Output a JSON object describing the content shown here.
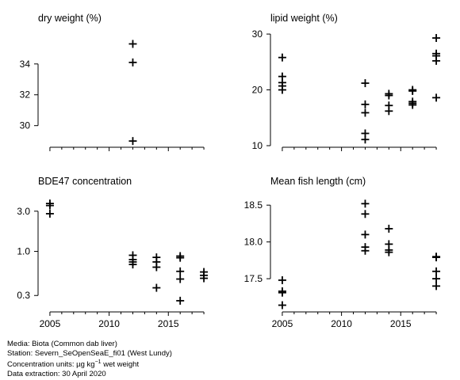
{
  "chart_data": [
    {
      "type": "scatter",
      "title": "dry weight (%)",
      "xlim": [
        2004,
        2019
      ],
      "ylim": [
        28.7,
        36.3
      ],
      "log_y": false,
      "yticks": [
        30,
        32,
        34
      ],
      "ytick_labels": [
        "30",
        "32",
        "34"
      ],
      "xticks": [
        2005,
        2010,
        2015
      ],
      "show_x_labels": false,
      "grid": false,
      "points": [
        {
          "x": 2012,
          "y": 35.3
        },
        {
          "x": 2012,
          "y": 34.1
        },
        {
          "x": 2012,
          "y": 29.0
        }
      ]
    },
    {
      "type": "scatter",
      "title": "lipid weight (%)",
      "xlim": [
        2004,
        2019
      ],
      "ylim": [
        10,
        31
      ],
      "log_y": false,
      "yticks": [
        10,
        20,
        30
      ],
      "ytick_labels": [
        "10",
        "20",
        "30"
      ],
      "xticks": [
        2005,
        2010,
        2015
      ],
      "show_x_labels": false,
      "grid": false,
      "points": [
        {
          "x": 2005,
          "y": 25.8
        },
        {
          "x": 2005,
          "y": 22.4
        },
        {
          "x": 2005,
          "y": 21.3
        },
        {
          "x": 2005,
          "y": 20.7
        },
        {
          "x": 2005,
          "y": 20.0
        },
        {
          "x": 2012,
          "y": 21.2
        },
        {
          "x": 2012,
          "y": 17.4
        },
        {
          "x": 2012,
          "y": 15.9
        },
        {
          "x": 2012,
          "y": 12.2
        },
        {
          "x": 2012,
          "y": 11.1
        },
        {
          "x": 2014,
          "y": 19.3
        },
        {
          "x": 2014,
          "y": 19.0
        },
        {
          "x": 2014,
          "y": 17.2
        },
        {
          "x": 2014,
          "y": 16.2
        },
        {
          "x": 2016,
          "y": 20.0
        },
        {
          "x": 2016,
          "y": 19.8
        },
        {
          "x": 2016,
          "y": 17.9
        },
        {
          "x": 2016,
          "y": 17.6
        },
        {
          "x": 2016,
          "y": 17.3
        },
        {
          "x": 2018,
          "y": 29.3
        },
        {
          "x": 2018,
          "y": 26.5
        },
        {
          "x": 2018,
          "y": 26.1
        },
        {
          "x": 2018,
          "y": 25.2
        },
        {
          "x": 2018,
          "y": 18.6
        }
      ]
    },
    {
      "type": "scatter",
      "title": "BDE47 concentration",
      "xlim": [
        2004,
        2019
      ],
      "ylim": [
        0.2,
        4.5
      ],
      "log_y": true,
      "yticks": [
        0.3,
        1.0,
        3.0
      ],
      "ytick_labels": [
        "0.3",
        "1.0",
        "3.0"
      ],
      "xticks": [
        2005,
        2010,
        2015
      ],
      "show_x_labels": true,
      "xtick_labels": [
        "2005",
        "2010",
        "2015"
      ],
      "grid": false,
      "points": [
        {
          "x": 2005,
          "y": 3.7
        },
        {
          "x": 2005,
          "y": 3.5
        },
        {
          "x": 2005,
          "y": 2.8
        },
        {
          "x": 2012,
          "y": 0.9
        },
        {
          "x": 2012,
          "y": 0.8
        },
        {
          "x": 2012,
          "y": 0.75
        },
        {
          "x": 2012,
          "y": 0.7
        },
        {
          "x": 2014,
          "y": 0.85
        },
        {
          "x": 2014,
          "y": 0.75
        },
        {
          "x": 2014,
          "y": 0.65
        },
        {
          "x": 2014,
          "y": 0.37
        },
        {
          "x": 2016,
          "y": 0.88
        },
        {
          "x": 2016,
          "y": 0.84
        },
        {
          "x": 2016,
          "y": 0.58
        },
        {
          "x": 2016,
          "y": 0.47
        },
        {
          "x": 2016,
          "y": 0.26
        },
        {
          "x": 2018,
          "y": 0.57
        },
        {
          "x": 2018,
          "y": 0.52
        },
        {
          "x": 2018,
          "y": 0.48
        }
      ]
    },
    {
      "type": "scatter",
      "title": "Mean fish length (cm)",
      "xlim": [
        2004,
        2019
      ],
      "ylim": [
        17.07,
        18.62
      ],
      "log_y": false,
      "yticks": [
        17.5,
        18.0,
        18.5
      ],
      "ytick_labels": [
        "17.5",
        "18.0",
        "18.5"
      ],
      "xticks": [
        2005,
        2010,
        2015
      ],
      "show_x_labels": true,
      "xtick_labels": [
        "2005",
        "2010",
        "2015"
      ],
      "grid": false,
      "points": [
        {
          "x": 2005,
          "y": 17.48
        },
        {
          "x": 2005,
          "y": 17.33
        },
        {
          "x": 2005,
          "y": 17.31
        },
        {
          "x": 2005,
          "y": 17.14
        },
        {
          "x": 2012,
          "y": 18.52
        },
        {
          "x": 2012,
          "y": 18.38
        },
        {
          "x": 2012,
          "y": 18.1
        },
        {
          "x": 2012,
          "y": 17.93
        },
        {
          "x": 2012,
          "y": 17.88
        },
        {
          "x": 2014,
          "y": 18.18
        },
        {
          "x": 2014,
          "y": 17.97
        },
        {
          "x": 2014,
          "y": 17.89
        },
        {
          "x": 2014,
          "y": 17.86
        },
        {
          "x": 2018,
          "y": 17.8
        },
        {
          "x": 2018,
          "y": 17.79
        },
        {
          "x": 2018,
          "y": 17.6
        },
        {
          "x": 2018,
          "y": 17.5
        },
        {
          "x": 2018,
          "y": 17.4
        }
      ]
    }
  ],
  "footer": {
    "media": "Media: Biota (Common dab liver)",
    "station": "Station: Severn_SeOpenSeaE_fi01 (West Lundy)",
    "units_prefix": "Concentration units:  µg kg",
    "units_exp": "−1",
    "units_suffix": " wet weight",
    "extraction": "Data extraction: 30 April 2020"
  }
}
